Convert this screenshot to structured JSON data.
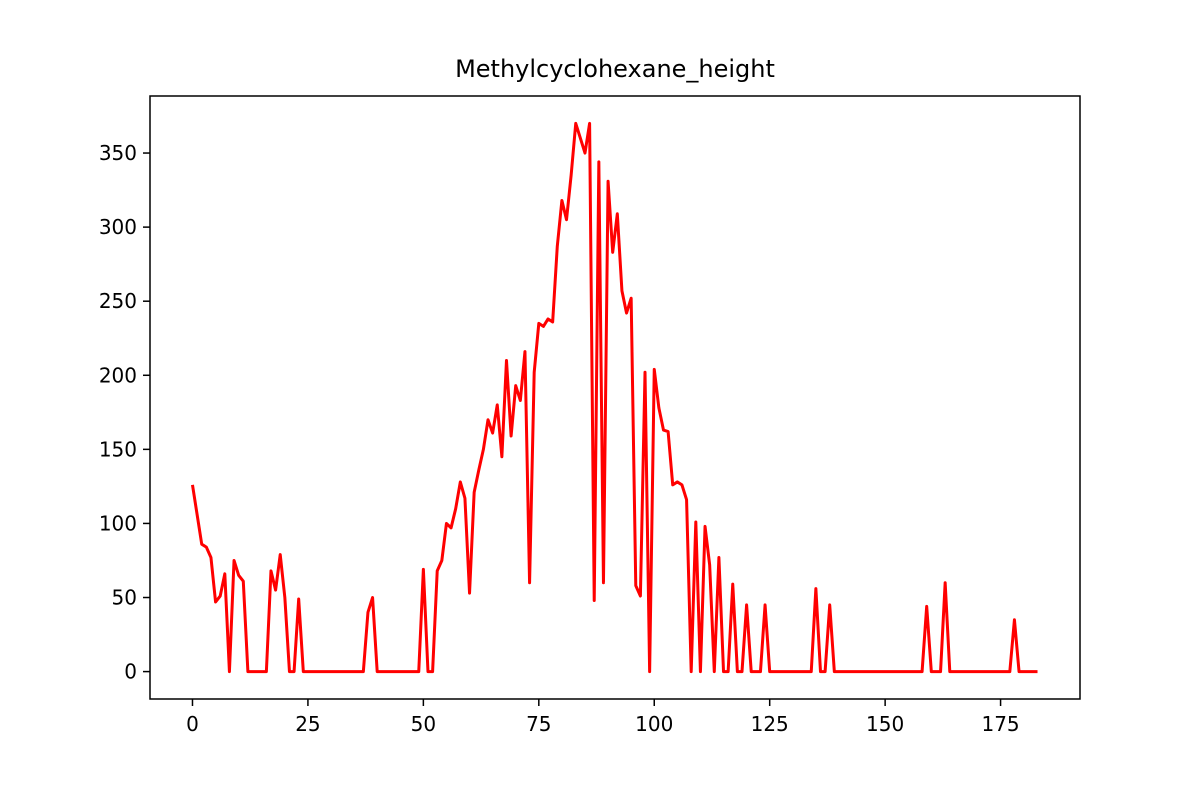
{
  "chart_data": {
    "type": "line",
    "title": "Methylcyclohexane_height",
    "xlabel": "",
    "ylabel": "",
    "xlim": [
      -9.2,
      192.2
    ],
    "ylim": [
      -18.5,
      388.5
    ],
    "xticks": [
      0,
      25,
      50,
      75,
      100,
      125,
      150,
      175
    ],
    "yticks": [
      0,
      50,
      100,
      150,
      200,
      250,
      300,
      350
    ],
    "grid": false,
    "legend": "none",
    "color": "#ff0000",
    "x": [
      0,
      1,
      2,
      3,
      4,
      5,
      6,
      7,
      8,
      9,
      10,
      11,
      12,
      13,
      14,
      15,
      16,
      17,
      18,
      19,
      20,
      21,
      22,
      23,
      24,
      25,
      26,
      27,
      28,
      29,
      30,
      31,
      32,
      33,
      34,
      35,
      36,
      37,
      38,
      39,
      40,
      41,
      42,
      43,
      44,
      45,
      46,
      47,
      48,
      49,
      50,
      51,
      52,
      53,
      54,
      55,
      56,
      57,
      58,
      59,
      60,
      61,
      62,
      63,
      64,
      65,
      66,
      67,
      68,
      69,
      70,
      71,
      72,
      73,
      74,
      75,
      76,
      77,
      78,
      79,
      80,
      81,
      82,
      83,
      84,
      85,
      86,
      87,
      88,
      89,
      90,
      91,
      92,
      93,
      94,
      95,
      96,
      97,
      98,
      99,
      100,
      101,
      102,
      103,
      104,
      105,
      106,
      107,
      108,
      109,
      110,
      111,
      112,
      113,
      114,
      115,
      116,
      117,
      118,
      119,
      120,
      121,
      122,
      123,
      124,
      125,
      126,
      127,
      128,
      129,
      130,
      131,
      132,
      133,
      134,
      135,
      136,
      137,
      138,
      139,
      140,
      141,
      142,
      143,
      144,
      145,
      146,
      147,
      148,
      149,
      150,
      151,
      152,
      153,
      154,
      155,
      156,
      157,
      158,
      159,
      160,
      161,
      162,
      163,
      164,
      165,
      166,
      167,
      168,
      169,
      170,
      171,
      172,
      173,
      174,
      175,
      176,
      177,
      178,
      179,
      180,
      181,
      182,
      183
    ],
    "y": [
      126,
      106,
      86,
      84,
      77,
      47,
      51,
      66,
      0,
      75,
      65,
      61,
      0,
      0,
      0,
      0,
      0,
      68,
      55,
      79,
      50,
      0,
      0,
      49,
      0,
      0,
      0,
      0,
      0,
      0,
      0,
      0,
      0,
      0,
      0,
      0,
      0,
      0,
      40,
      50,
      0,
      0,
      0,
      0,
      0,
      0,
      0,
      0,
      0,
      0,
      69,
      0,
      0,
      68,
      75,
      100,
      97,
      110,
      128,
      117,
      53,
      121,
      136,
      150,
      170,
      161,
      180,
      145,
      210,
      159,
      193,
      183,
      216,
      60,
      202,
      235,
      233,
      238,
      236,
      287,
      318,
      305,
      335,
      370,
      360,
      350,
      370,
      48,
      344,
      60,
      331,
      283,
      309,
      257,
      242,
      252,
      58,
      51,
      202,
      0,
      204,
      178,
      163,
      162,
      126,
      128,
      126,
      116,
      0,
      101,
      0,
      98,
      72,
      0,
      77,
      0,
      0,
      59,
      0,
      0,
      45,
      0,
      0,
      0,
      45,
      0,
      0,
      0,
      0,
      0,
      0,
      0,
      0,
      0,
      0,
      56,
      0,
      0,
      45,
      0,
      0,
      0,
      0,
      0,
      0,
      0,
      0,
      0,
      0,
      0,
      0,
      0,
      0,
      0,
      0,
      0,
      0,
      0,
      0,
      44,
      0,
      0,
      0,
      60,
      0,
      0,
      0,
      0,
      0,
      0,
      0,
      0,
      0,
      0,
      0,
      0,
      0,
      0,
      35,
      0,
      0,
      0,
      0,
      0
    ]
  }
}
